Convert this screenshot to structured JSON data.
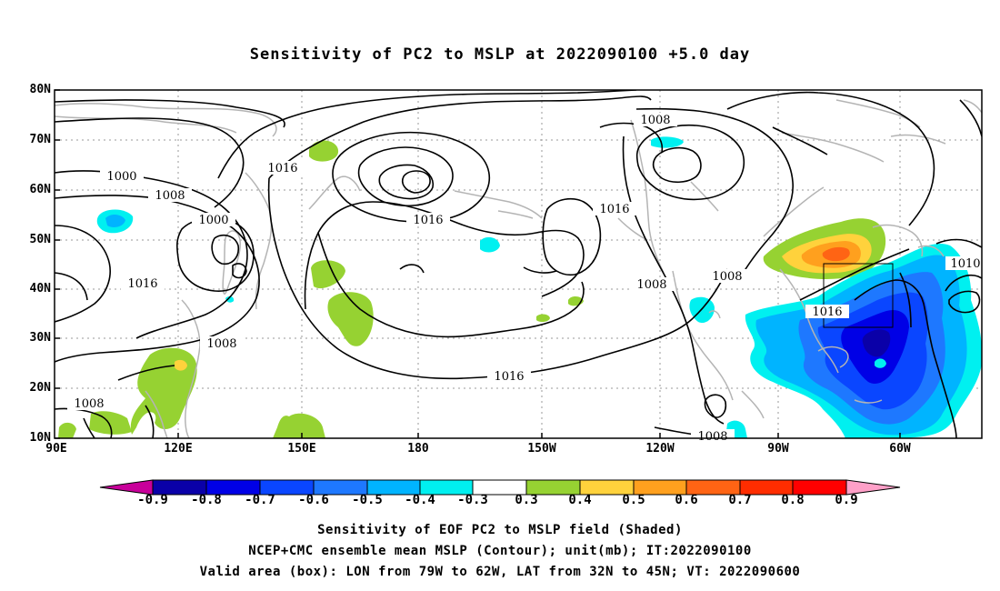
{
  "title": "Sensitivity of PC2 to MSLP at 2022090100 +5.0 day",
  "lat_labels": [
    "80N",
    "70N",
    "60N",
    "50N",
    "40N",
    "30N",
    "20N",
    "10N"
  ],
  "lon_labels": [
    "90E",
    "120E",
    "150E",
    "180",
    "150W",
    "120W",
    "90W",
    "60W"
  ],
  "contour_labels": [
    "1008",
    "1016",
    "1000",
    "1008",
    "1000",
    "1016",
    "1008",
    "1016",
    "1008",
    "1016",
    "1008",
    "1008",
    "1016",
    "1016",
    "1010",
    "1008"
  ],
  "colorbar": {
    "labels": [
      "-0.9",
      "-0.8",
      "-0.7",
      "-0.6",
      "-0.5",
      "-0.4",
      "-0.3",
      "0.3",
      "0.4",
      "0.5",
      "0.6",
      "0.7",
      "0.8",
      "0.9"
    ],
    "colors": [
      "#c8009a",
      "#0a00a8",
      "#0000e6",
      "#0a46ff",
      "#1e78ff",
      "#00b4ff",
      "#00f0f0",
      "#ffffff",
      "#96d232",
      "#ffd23c",
      "#ffa01e",
      "#ff6414",
      "#ff2d00",
      "#ff0000",
      "#ffa0c8"
    ]
  },
  "captions": [
    "Sensitivity of EOF PC2 to MSLP field (Shaded)",
    "NCEP+CMC ensemble mean MSLP (Contour); unit(mb); IT:2022090100",
    "Valid area (box): LON from 79W to 62W, LAT from 32N to 45N; VT: 2022090600"
  ]
}
